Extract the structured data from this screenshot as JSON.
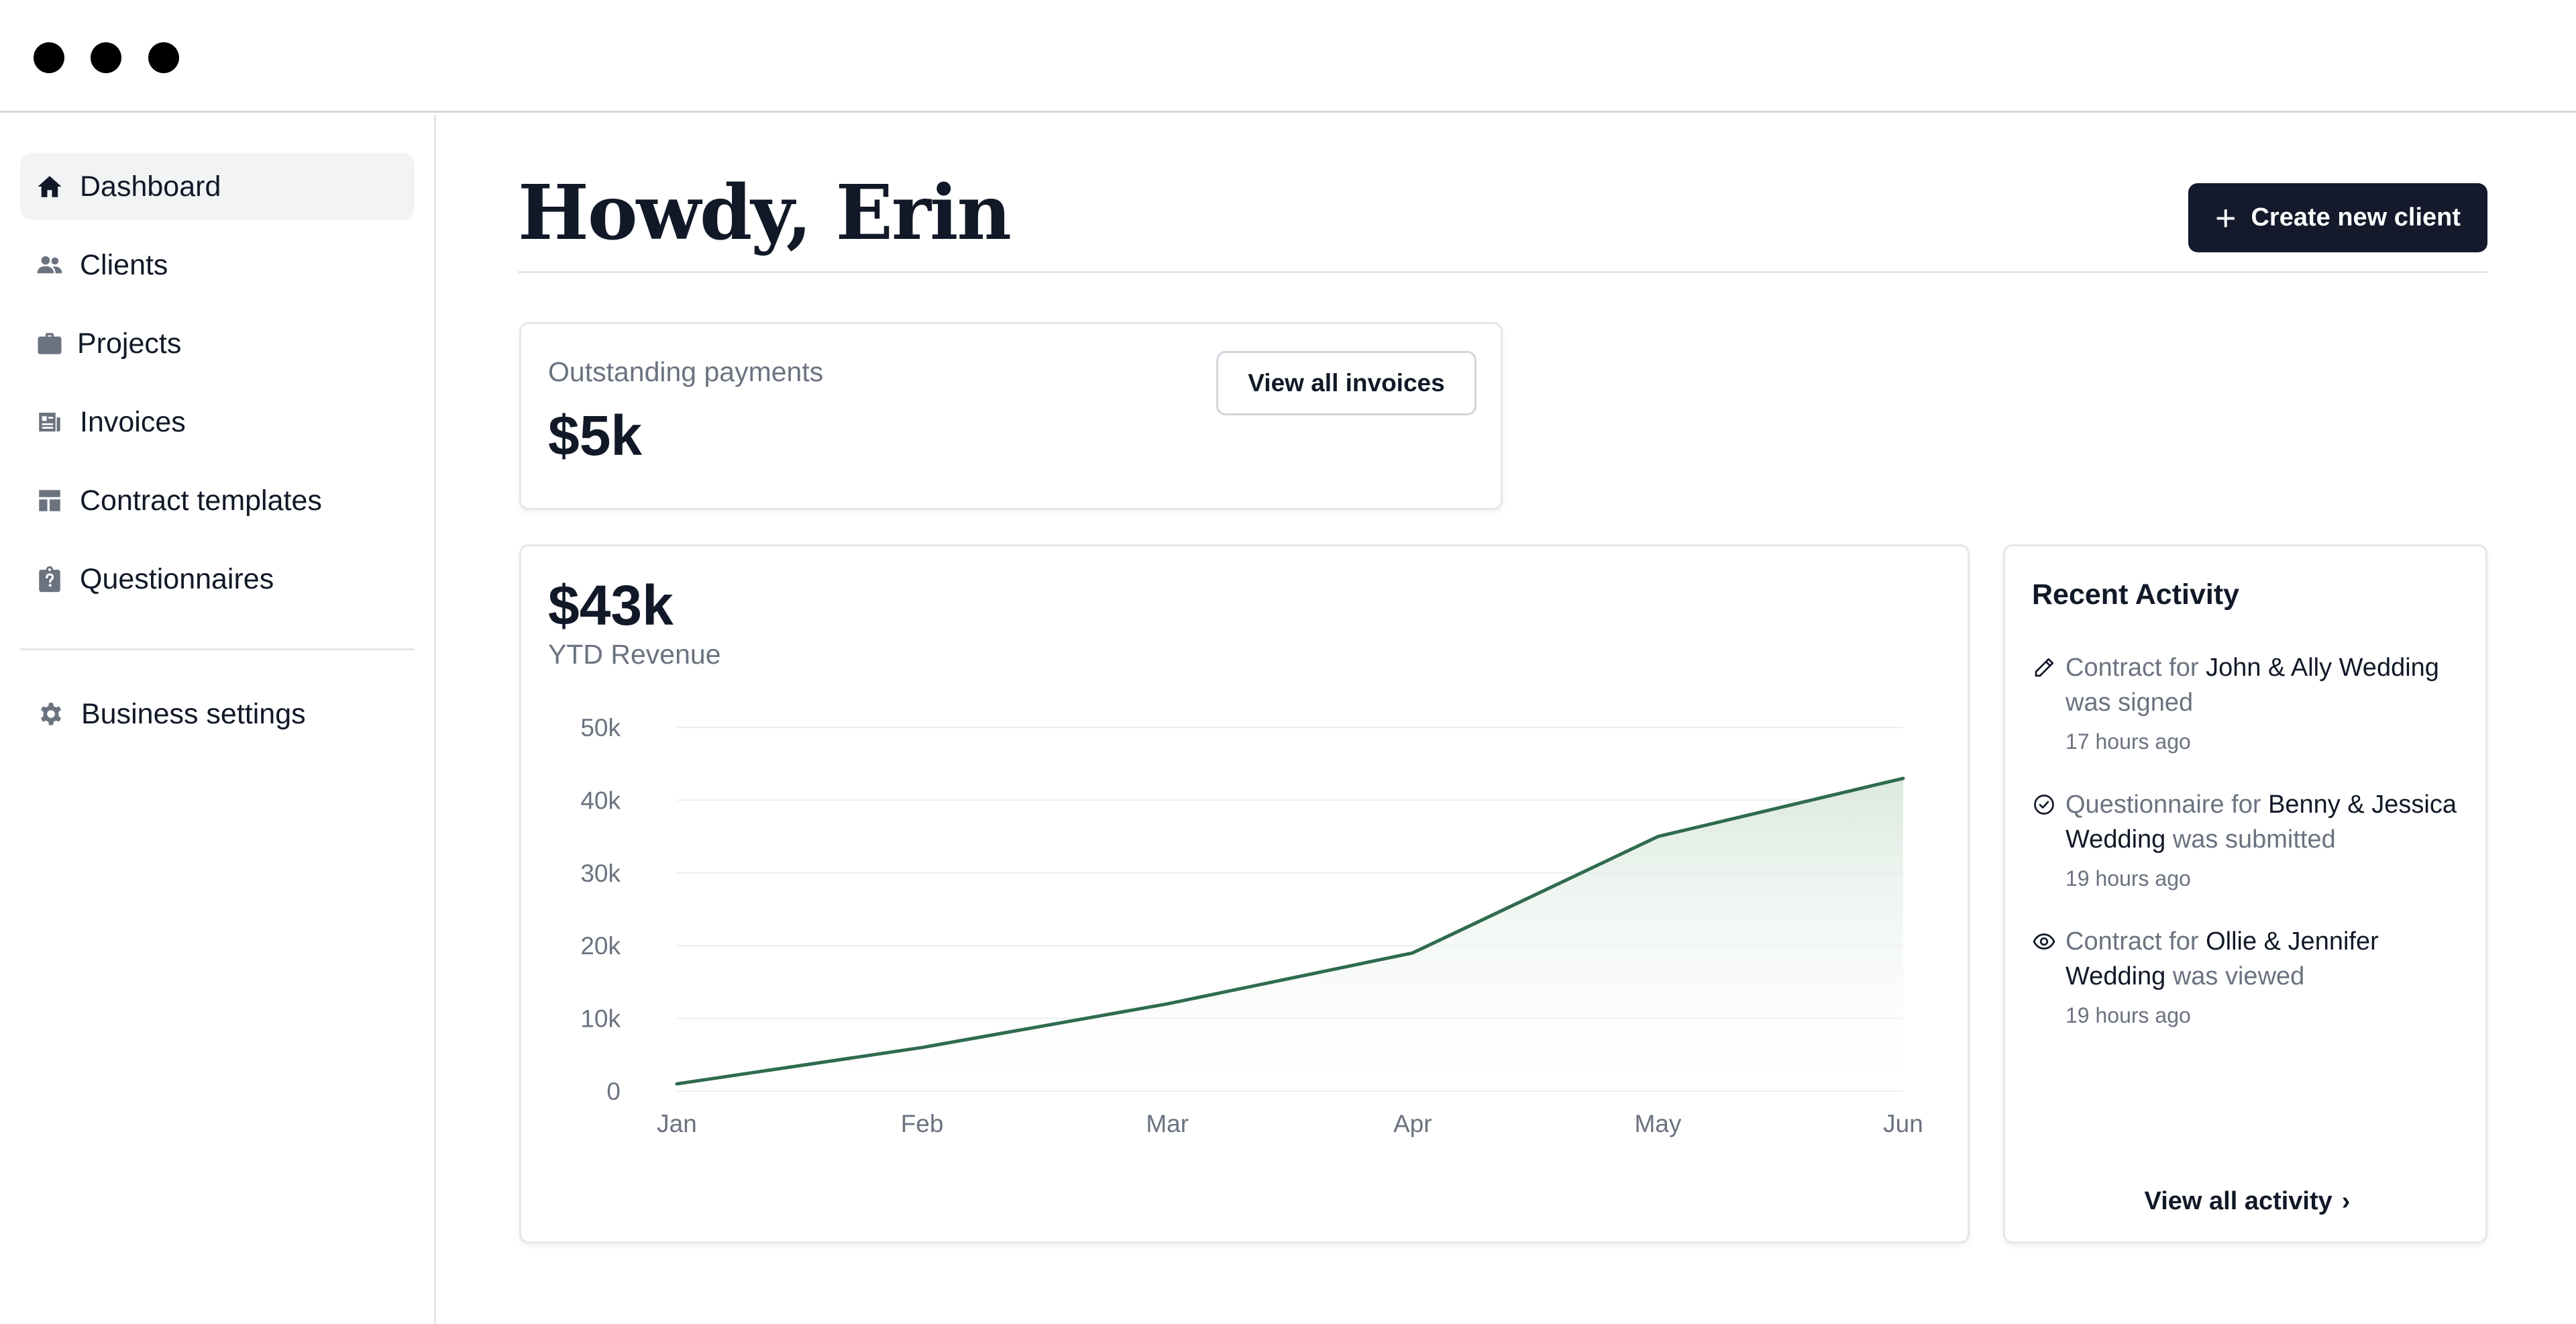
{
  "window": {
    "controls": [
      "close",
      "minimize",
      "maximize"
    ]
  },
  "sidebar": {
    "items": [
      {
        "label": "Dashboard",
        "icon": "home-icon",
        "active": true
      },
      {
        "label": "Clients",
        "icon": "users-icon"
      },
      {
        "label": "Projects",
        "icon": "briefcase-icon"
      },
      {
        "label": "Invoices",
        "icon": "invoice-icon"
      },
      {
        "label": "Contract templates",
        "icon": "template-icon"
      },
      {
        "label": "Questionnaires",
        "icon": "clipboard-question-icon"
      }
    ],
    "settings": {
      "label": "Business settings",
      "icon": "gear-icon"
    }
  },
  "header": {
    "title": "Howdy, Erin",
    "create_button": {
      "plus": "+",
      "label": "Create new client"
    }
  },
  "outstanding": {
    "label": "Outstanding payments",
    "value": "$5k",
    "button_label": "View all invoices"
  },
  "revenue": {
    "value": "$43k",
    "label": "YTD Revenue"
  },
  "chart_data": {
    "type": "area",
    "categories": [
      "Jan",
      "Feb",
      "Mar",
      "Apr",
      "May",
      "Jun"
    ],
    "values": [
      1000,
      6000,
      12000,
      19000,
      35000,
      43000
    ],
    "y_ticks": [
      "0",
      "10k",
      "20k",
      "30k",
      "40k",
      "50k"
    ],
    "ylim": [
      0,
      50000
    ],
    "grid": true,
    "line_color": "#2f6b4f",
    "fill_color": "#e3ede6"
  },
  "activity": {
    "title": "Recent Activity",
    "items": [
      {
        "icon": "pencil-icon",
        "pre": "Contract for ",
        "subject": "John & Ally Wedding",
        "post": " was signed",
        "time": "17 hours ago"
      },
      {
        "icon": "check-circle-icon",
        "pre": "Questionnaire for ",
        "subject": "Benny & Jessica Wedding",
        "post": " was submitted",
        "time": "19 hours ago"
      },
      {
        "icon": "eye-icon",
        "pre": "Contract for ",
        "subject": "Ollie & Jennifer Wedding",
        "post": " was viewed",
        "time": "19 hours ago"
      }
    ],
    "view_all_label": "View all activity",
    "view_all_chevron": "›"
  },
  "colors": {
    "primary": "#141a2b",
    "chart_line": "#2f6b4f",
    "muted_text": "#6b7280",
    "border": "#e5e7eb"
  }
}
